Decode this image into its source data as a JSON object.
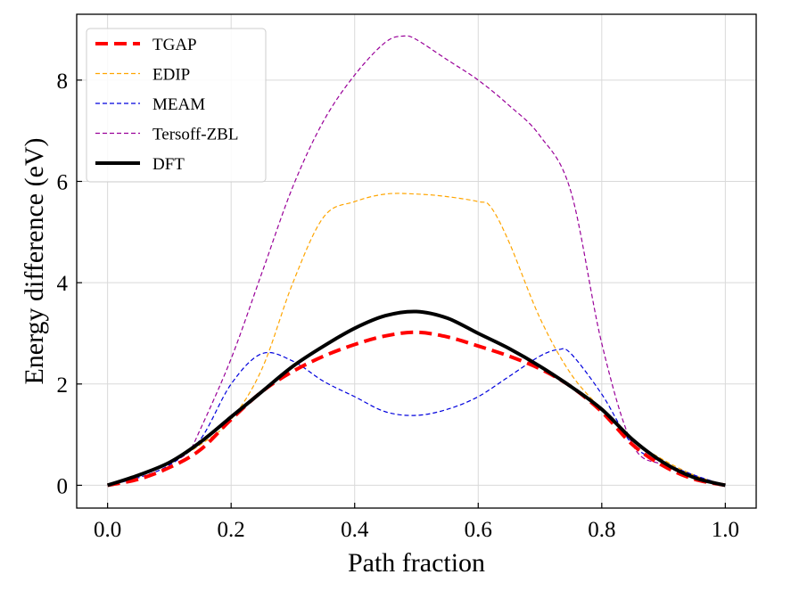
{
  "chart_data": {
    "type": "line",
    "title": "",
    "xlabel": "Path fraction",
    "ylabel": "Energy difference (eV)",
    "xlim": [
      -0.05,
      1.05
    ],
    "ylim": [
      -0.45,
      9.3
    ],
    "xticks": [
      0.0,
      0.2,
      0.4,
      0.6,
      0.8,
      1.0
    ],
    "xtick_labels": [
      "0.0",
      "0.2",
      "0.4",
      "0.6",
      "0.8",
      "1.0"
    ],
    "yticks": [
      0,
      2,
      4,
      6,
      8
    ],
    "ytick_labels": [
      "0",
      "2",
      "4",
      "6",
      "8"
    ],
    "grid": true,
    "legend_position": "top-left",
    "series": [
      {
        "name": "TGAP",
        "color": "#ff0000",
        "style": "dashed-thick",
        "x": [
          0.0,
          0.05,
          0.1,
          0.15,
          0.2,
          0.25,
          0.3,
          0.35,
          0.4,
          0.45,
          0.5,
          0.55,
          0.6,
          0.65,
          0.7,
          0.75,
          0.8,
          0.85,
          0.9,
          0.95,
          1.0
        ],
        "y": [
          0.0,
          0.12,
          0.35,
          0.7,
          1.3,
          1.85,
          2.25,
          2.55,
          2.78,
          2.95,
          3.02,
          2.93,
          2.75,
          2.55,
          2.3,
          1.95,
          1.45,
          0.8,
          0.38,
          0.12,
          0.0
        ]
      },
      {
        "name": "EDIP",
        "color": "#ffa500",
        "style": "dashed-thin",
        "x": [
          0.0,
          0.05,
          0.1,
          0.15,
          0.2,
          0.25,
          0.3,
          0.35,
          0.4,
          0.45,
          0.5,
          0.55,
          0.6,
          0.62,
          0.65,
          0.7,
          0.75,
          0.8,
          0.85,
          0.9,
          0.95,
          1.0
        ],
        "y": [
          0.0,
          0.2,
          0.45,
          0.8,
          1.3,
          2.3,
          4.0,
          5.3,
          5.6,
          5.75,
          5.75,
          5.7,
          5.6,
          5.5,
          4.8,
          3.3,
          2.2,
          1.5,
          0.9,
          0.5,
          0.2,
          0.0
        ]
      },
      {
        "name": "MEAM",
        "color": "#0000dd",
        "style": "dashed-thin",
        "x": [
          0.0,
          0.05,
          0.1,
          0.15,
          0.2,
          0.25,
          0.3,
          0.35,
          0.4,
          0.45,
          0.5,
          0.55,
          0.6,
          0.65,
          0.7,
          0.73,
          0.75,
          0.8,
          0.85,
          0.9,
          0.95,
          1.0
        ],
        "y": [
          0.0,
          0.15,
          0.4,
          0.9,
          2.0,
          2.6,
          2.45,
          2.05,
          1.75,
          1.45,
          1.38,
          1.5,
          1.75,
          2.15,
          2.55,
          2.68,
          2.6,
          1.8,
          0.8,
          0.45,
          0.2,
          0.0
        ]
      },
      {
        "name": "Tersoff-ZBL",
        "color": "#990099",
        "style": "dashed-thin",
        "x": [
          0.0,
          0.05,
          0.1,
          0.13,
          0.15,
          0.2,
          0.25,
          0.3,
          0.35,
          0.4,
          0.45,
          0.48,
          0.5,
          0.55,
          0.6,
          0.65,
          0.7,
          0.75,
          0.8,
          0.85,
          0.9,
          0.95,
          1.0
        ],
        "y": [
          0.0,
          0.2,
          0.45,
          0.65,
          1.1,
          2.5,
          4.2,
          5.9,
          7.2,
          8.1,
          8.75,
          8.87,
          8.8,
          8.4,
          8.0,
          7.5,
          6.9,
          5.8,
          2.8,
          0.8,
          0.4,
          0.15,
          0.0
        ]
      },
      {
        "name": "DFT",
        "color": "#000000",
        "style": "solid-thick",
        "x": [
          0.0,
          0.05,
          0.1,
          0.15,
          0.2,
          0.25,
          0.3,
          0.35,
          0.4,
          0.45,
          0.5,
          0.55,
          0.6,
          0.65,
          0.7,
          0.75,
          0.8,
          0.85,
          0.9,
          0.95,
          1.0
        ],
        "y": [
          0.0,
          0.2,
          0.45,
          0.85,
          1.35,
          1.85,
          2.35,
          2.75,
          3.1,
          3.35,
          3.43,
          3.3,
          3.0,
          2.7,
          2.35,
          1.95,
          1.5,
          0.9,
          0.45,
          0.15,
          0.0
        ]
      }
    ]
  }
}
